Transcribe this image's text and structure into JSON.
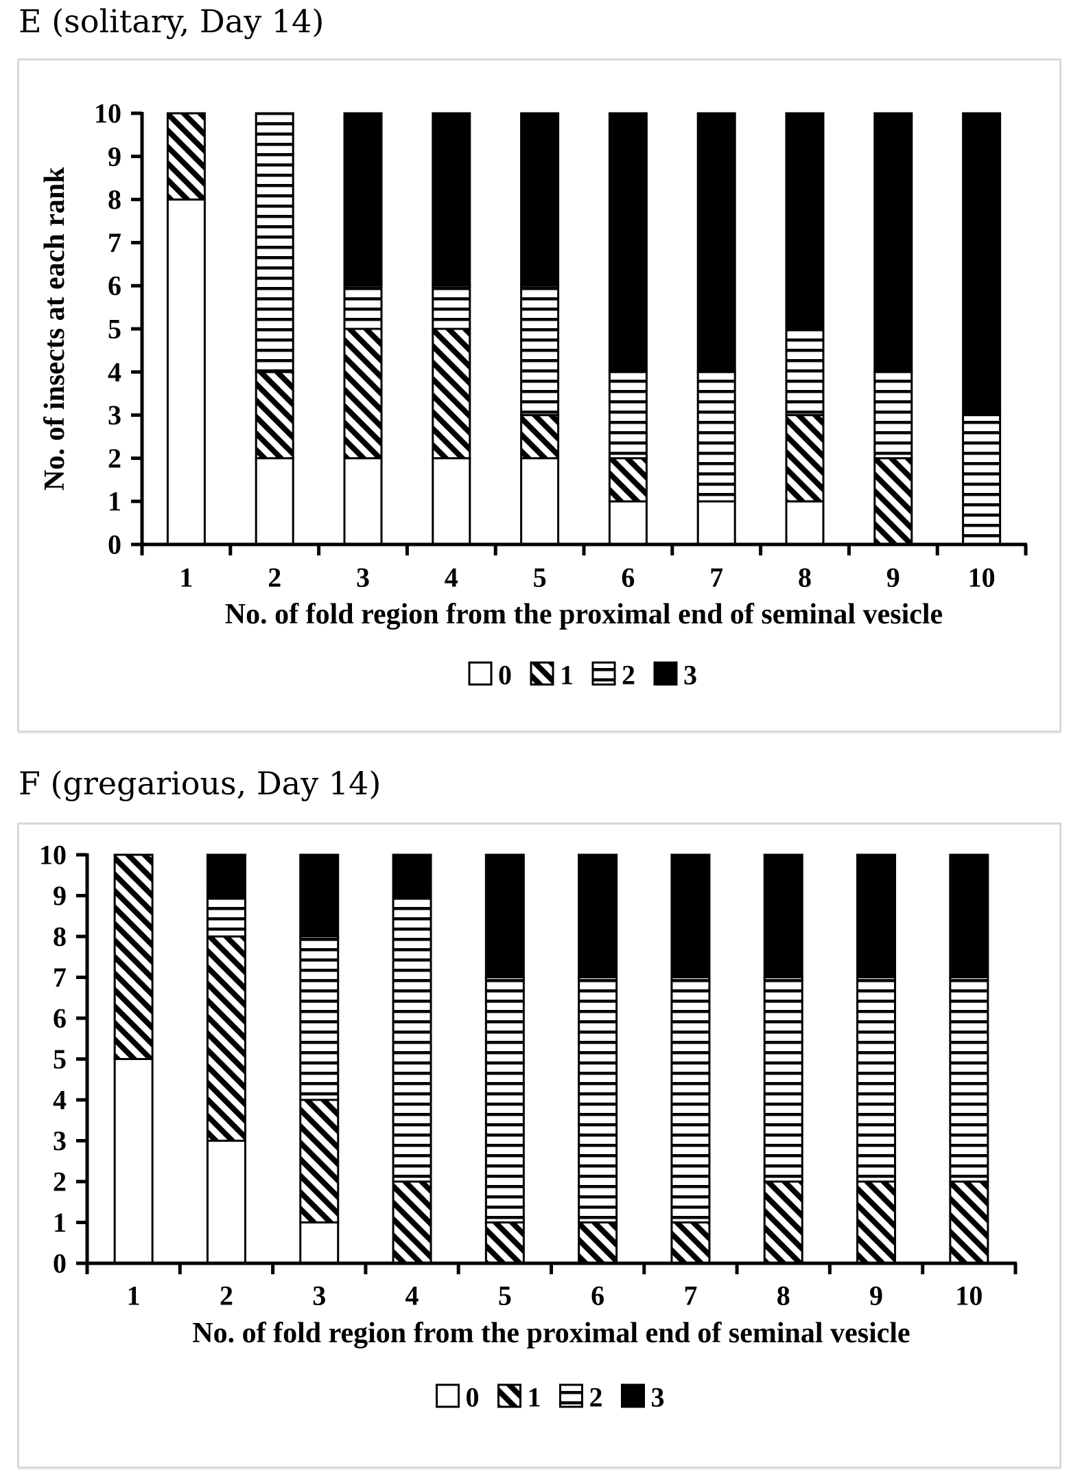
{
  "page": {
    "background": "#ffffff"
  },
  "panels": [
    {
      "id": "E",
      "title": "E (solitary, Day 14)"
    },
    {
      "id": "F",
      "title": "F (gregarious, Day 14)"
    }
  ],
  "chart_data": [
    {
      "type": "bar",
      "stacked": true,
      "title": "E (solitary, Day 14)",
      "categories": [
        "1",
        "2",
        "3",
        "4",
        "5",
        "6",
        "7",
        "8",
        "9",
        "10"
      ],
      "series": [
        {
          "name": "0",
          "pattern": "plain",
          "values": [
            8,
            2,
            2,
            2,
            2,
            1,
            1,
            1,
            0,
            0
          ]
        },
        {
          "name": "1",
          "pattern": "diagonal",
          "values": [
            2,
            2,
            3,
            3,
            1,
            1,
            0,
            2,
            2,
            0
          ]
        },
        {
          "name": "2",
          "pattern": "horizontal",
          "values": [
            0,
            6,
            1,
            1,
            3,
            2,
            3,
            2,
            2,
            3
          ]
        },
        {
          "name": "3",
          "pattern": "solid",
          "values": [
            0,
            0,
            4,
            4,
            4,
            6,
            6,
            5,
            6,
            7
          ]
        }
      ],
      "xlabel": "No. of fold region from the proximal end of seminal vesicle",
      "ylabel": "No. of insects at each rank",
      "ylim": [
        0,
        10
      ],
      "yticks": [
        0,
        1,
        2,
        3,
        4,
        5,
        6,
        7,
        8,
        9,
        10
      ],
      "legend": [
        "0",
        "1",
        "2",
        "3"
      ],
      "legend_position": "bottom",
      "grid": false
    },
    {
      "type": "bar",
      "stacked": true,
      "title": "F (gregarious, Day 14)",
      "categories": [
        "1",
        "2",
        "3",
        "4",
        "5",
        "6",
        "7",
        "8",
        "9",
        "10"
      ],
      "series": [
        {
          "name": "0",
          "pattern": "plain",
          "values": [
            5,
            3,
            1,
            0,
            0,
            0,
            0,
            0,
            0,
            0
          ]
        },
        {
          "name": "1",
          "pattern": "diagonal",
          "values": [
            5,
            5,
            3,
            2,
            1,
            1,
            1,
            2,
            2,
            2
          ]
        },
        {
          "name": "2",
          "pattern": "horizontal",
          "values": [
            0,
            1,
            4,
            7,
            6,
            6,
            6,
            5,
            5,
            5
          ]
        },
        {
          "name": "3",
          "pattern": "solid",
          "values": [
            0,
            1,
            2,
            1,
            3,
            3,
            3,
            3,
            3,
            3
          ]
        }
      ],
      "xlabel": "No. of fold region from the proximal end of seminal vesicle",
      "ylabel": "",
      "ylim": [
        0,
        10
      ],
      "yticks": [
        0,
        1,
        2,
        3,
        4,
        5,
        6,
        7,
        8,
        9,
        10
      ],
      "legend": [
        "0",
        "1",
        "2",
        "3"
      ],
      "legend_position": "bottom",
      "grid": false
    }
  ],
  "colors": {
    "bar_stroke": "#000000",
    "bar_fill_solid": "#000000",
    "bar_fill_plain": "#ffffff",
    "text": "#000000",
    "panel_border": "#d8d8d8",
    "background": "#ffffff"
  }
}
